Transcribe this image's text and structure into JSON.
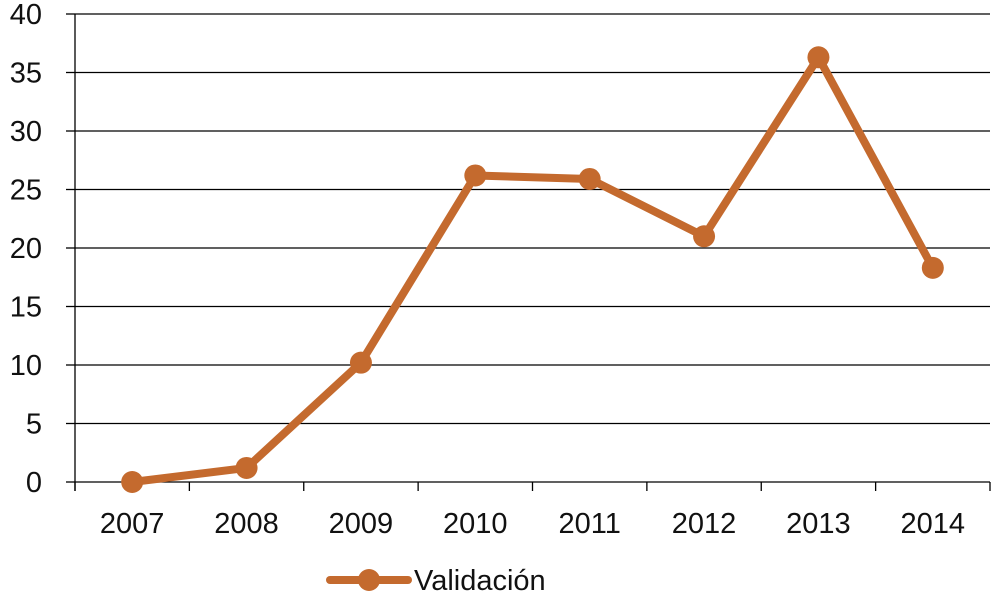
{
  "chart_data": {
    "type": "line",
    "categories": [
      "2007",
      "2008",
      "2009",
      "2010",
      "2011",
      "2012",
      "2013",
      "2014"
    ],
    "series": [
      {
        "name": "Validación",
        "values": [
          0,
          1.2,
          10.2,
          26.2,
          25.9,
          21,
          36.3,
          18.3
        ]
      }
    ],
    "ylim": [
      0,
      40
    ],
    "yticks": [
      0,
      5,
      10,
      15,
      20,
      25,
      30,
      35,
      40
    ],
    "ytick_labels": [
      "0",
      "5",
      "10",
      "15",
      "20",
      "25",
      "30",
      "35",
      "40"
    ],
    "grid": "horizontal",
    "legend_position": "bottom",
    "series_color": "#C46A2E",
    "grid_color": "#000000"
  }
}
